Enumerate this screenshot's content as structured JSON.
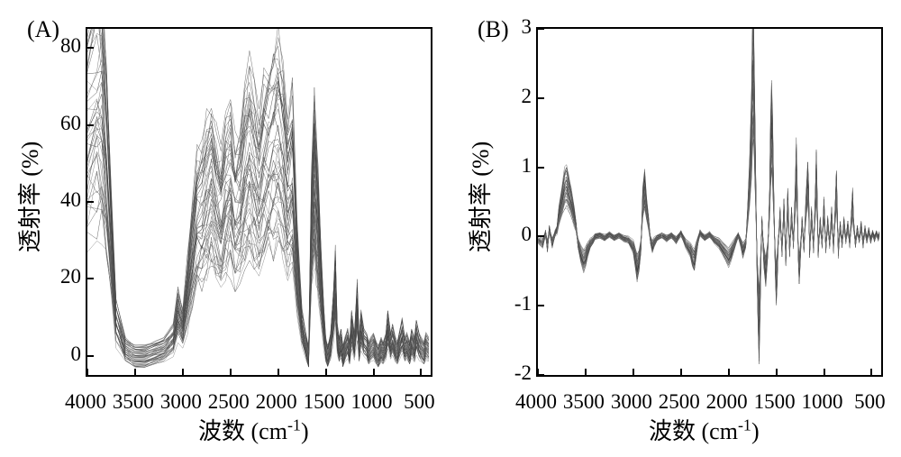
{
  "panel_a": {
    "label": "(A)",
    "type": "line",
    "y_label": "透射率 (%)",
    "x_label_prefix": "波数 (cm",
    "x_label_sup": "-1",
    "x_label_suffix": ")",
    "xlim": [
      4000,
      400
    ],
    "ylim": [
      -5,
      85
    ],
    "x_ticks": [
      4000,
      3500,
      3000,
      2500,
      2000,
      1500,
      1000,
      500
    ],
    "y_ticks": [
      0,
      20,
      40,
      60,
      80
    ],
    "background_color": "#ffffff",
    "axis_color": "#000000",
    "line_colors": [
      "#333333",
      "#444444",
      "#555555",
      "#666666",
      "#777777",
      "#505050"
    ],
    "line_width": 0.5,
    "n_series": 45,
    "title_fontsize": 26,
    "label_fontsize": 26,
    "tick_fontsize": 23,
    "base_curve": [
      [
        4000,
        65
      ],
      [
        3900,
        72
      ],
      [
        3850,
        70
      ],
      [
        3800,
        55
      ],
      [
        3750,
        30
      ],
      [
        3700,
        10
      ],
      [
        3600,
        2
      ],
      [
        3500,
        0
      ],
      [
        3400,
        0
      ],
      [
        3300,
        1
      ],
      [
        3200,
        2
      ],
      [
        3100,
        5
      ],
      [
        3050,
        12
      ],
      [
        3000,
        8
      ],
      [
        2950,
        18
      ],
      [
        2900,
        28
      ],
      [
        2850,
        38
      ],
      [
        2800,
        40
      ],
      [
        2750,
        45
      ],
      [
        2700,
        48
      ],
      [
        2650,
        42
      ],
      [
        2600,
        38
      ],
      [
        2550,
        45
      ],
      [
        2500,
        48
      ],
      [
        2450,
        40
      ],
      [
        2400,
        42
      ],
      [
        2350,
        50
      ],
      [
        2300,
        55
      ],
      [
        2250,
        50
      ],
      [
        2200,
        45
      ],
      [
        2150,
        52
      ],
      [
        2100,
        55
      ],
      [
        2050,
        58
      ],
      [
        2000,
        60
      ],
      [
        1950,
        55
      ],
      [
        1900,
        45
      ],
      [
        1850,
        50
      ],
      [
        1800,
        25
      ],
      [
        1750,
        8
      ],
      [
        1700,
        2
      ],
      [
        1680,
        0
      ],
      [
        1650,
        35
      ],
      [
        1620,
        50
      ],
      [
        1600,
        42
      ],
      [
        1580,
        35
      ],
      [
        1550,
        20
      ],
      [
        1520,
        8
      ],
      [
        1500,
        2
      ],
      [
        1480,
        0
      ],
      [
        1450,
        3
      ],
      [
        1420,
        12
      ],
      [
        1400,
        20
      ],
      [
        1380,
        5
      ],
      [
        1360,
        2
      ],
      [
        1340,
        4
      ],
      [
        1320,
        0
      ],
      [
        1300,
        2
      ],
      [
        1270,
        4
      ],
      [
        1250,
        1
      ],
      [
        1230,
        8
      ],
      [
        1200,
        3
      ],
      [
        1170,
        14
      ],
      [
        1150,
        2
      ],
      [
        1130,
        8
      ],
      [
        1100,
        4
      ],
      [
        1070,
        3
      ],
      [
        1050,
        1
      ],
      [
        1030,
        2
      ],
      [
        1000,
        3
      ],
      [
        970,
        1
      ],
      [
        950,
        0
      ],
      [
        920,
        2
      ],
      [
        900,
        1
      ],
      [
        870,
        3
      ],
      [
        850,
        8
      ],
      [
        820,
        3
      ],
      [
        800,
        5
      ],
      [
        770,
        2
      ],
      [
        750,
        1
      ],
      [
        720,
        4
      ],
      [
        700,
        6
      ],
      [
        670,
        2
      ],
      [
        650,
        3
      ],
      [
        620,
        1
      ],
      [
        600,
        4
      ],
      [
        570,
        2
      ],
      [
        550,
        6
      ],
      [
        520,
        3
      ],
      [
        500,
        2
      ],
      [
        470,
        1
      ],
      [
        450,
        3
      ],
      [
        420,
        2
      ]
    ],
    "variation": 0.35
  },
  "panel_b": {
    "label": "(B)",
    "type": "line",
    "y_label": "透射率 (%)",
    "x_label_prefix": "波数 (cm",
    "x_label_sup": "-1",
    "x_label_suffix": ")",
    "xlim": [
      4000,
      400
    ],
    "ylim": [
      -2,
      3
    ],
    "x_ticks": [
      4000,
      3500,
      3000,
      2500,
      2000,
      1500,
      1000,
      500
    ],
    "y_ticks": [
      -2,
      -1,
      0,
      1,
      2,
      3
    ],
    "background_color": "#ffffff",
    "axis_color": "#000000",
    "line_colors": [
      "#333333",
      "#444444",
      "#555555",
      "#666666",
      "#777777",
      "#505050"
    ],
    "line_width": 0.5,
    "n_series": 35,
    "title_fontsize": 26,
    "label_fontsize": 26,
    "tick_fontsize": 23,
    "base_curve": [
      [
        4000,
        -0.05
      ],
      [
        3950,
        -0.1
      ],
      [
        3920,
        0.05
      ],
      [
        3900,
        -0.15
      ],
      [
        3880,
        0.1
      ],
      [
        3850,
        -0.1
      ],
      [
        3820,
        0.05
      ],
      [
        3800,
        0.1
      ],
      [
        3780,
        0.3
      ],
      [
        3750,
        0.5
      ],
      [
        3720,
        0.7
      ],
      [
        3700,
        0.75
      ],
      [
        3680,
        0.65
      ],
      [
        3650,
        0.5
      ],
      [
        3620,
        0.3
      ],
      [
        3600,
        0.15
      ],
      [
        3580,
        -0.1
      ],
      [
        3550,
        -0.25
      ],
      [
        3520,
        -0.35
      ],
      [
        3500,
        -0.3
      ],
      [
        3480,
        -0.2
      ],
      [
        3450,
        -0.1
      ],
      [
        3420,
        -0.05
      ],
      [
        3400,
        0
      ],
      [
        3350,
        0.02
      ],
      [
        3300,
        -0.02
      ],
      [
        3250,
        0.03
      ],
      [
        3200,
        -0.02
      ],
      [
        3150,
        0.02
      ],
      [
        3100,
        -0.03
      ],
      [
        3050,
        -0.05
      ],
      [
        3000,
        -0.15
      ],
      [
        2980,
        -0.3
      ],
      [
        2960,
        -0.45
      ],
      [
        2940,
        -0.35
      ],
      [
        2920,
        -0.15
      ],
      [
        2900,
        0.5
      ],
      [
        2880,
        0.7
      ],
      [
        2860,
        0.4
      ],
      [
        2840,
        0.2
      ],
      [
        2820,
        -0.05
      ],
      [
        2800,
        -0.15
      ],
      [
        2780,
        -0.08
      ],
      [
        2750,
        -0.02
      ],
      [
        2700,
        0.02
      ],
      [
        2650,
        -0.03
      ],
      [
        2600,
        0.02
      ],
      [
        2550,
        -0.05
      ],
      [
        2500,
        0.05
      ],
      [
        2450,
        -0.1
      ],
      [
        2400,
        -0.2
      ],
      [
        2380,
        -0.3
      ],
      [
        2360,
        -0.35
      ],
      [
        2340,
        -0.2
      ],
      [
        2320,
        -0.05
      ],
      [
        2300,
        0.05
      ],
      [
        2280,
        0.02
      ],
      [
        2250,
        -0.02
      ],
      [
        2200,
        0.03
      ],
      [
        2150,
        -0.05
      ],
      [
        2100,
        -0.1
      ],
      [
        2050,
        -0.2
      ],
      [
        2000,
        -0.3
      ],
      [
        1980,
        -0.25
      ],
      [
        1950,
        -0.15
      ],
      [
        1920,
        -0.05
      ],
      [
        1900,
        0.02
      ],
      [
        1870,
        -0.1
      ],
      [
        1850,
        -0.2
      ],
      [
        1820,
        -0.1
      ],
      [
        1800,
        0.3
      ],
      [
        1780,
        0.8
      ],
      [
        1760,
        1.5
      ],
      [
        1750,
        2.2
      ],
      [
        1740,
        2.4
      ],
      [
        1730,
        1.8
      ],
      [
        1720,
        1.0
      ],
      [
        1710,
        0.2
      ],
      [
        1700,
        -0.5
      ],
      [
        1690,
        -1.0
      ],
      [
        1680,
        -1.3
      ],
      [
        1670,
        -0.8
      ],
      [
        1660,
        -0.2
      ],
      [
        1650,
        0.2
      ],
      [
        1630,
        -0.3
      ],
      [
        1610,
        -0.5
      ],
      [
        1590,
        -0.2
      ],
      [
        1570,
        0.5
      ],
      [
        1560,
        1.2
      ],
      [
        1550,
        1.6
      ],
      [
        1540,
        1.3
      ],
      [
        1530,
        0.7
      ],
      [
        1520,
        0.1
      ],
      [
        1510,
        -0.4
      ],
      [
        1500,
        -0.7
      ],
      [
        1490,
        -0.5
      ],
      [
        1480,
        -0.1
      ],
      [
        1460,
        0.3
      ],
      [
        1440,
        -0.2
      ],
      [
        1420,
        0.4
      ],
      [
        1400,
        -0.3
      ],
      [
        1380,
        0.5
      ],
      [
        1360,
        -0.2
      ],
      [
        1340,
        0.3
      ],
      [
        1320,
        -0.1
      ],
      [
        1300,
        0.6
      ],
      [
        1290,
        1.0
      ],
      [
        1280,
        0.5
      ],
      [
        1270,
        -0.2
      ],
      [
        1260,
        -0.5
      ],
      [
        1250,
        -0.3
      ],
      [
        1230,
        0.2
      ],
      [
        1210,
        -0.15
      ],
      [
        1190,
        0.4
      ],
      [
        1170,
        0.8
      ],
      [
        1160,
        0.5
      ],
      [
        1150,
        -0.2
      ],
      [
        1130,
        0.3
      ],
      [
        1110,
        -0.15
      ],
      [
        1090,
        0.5
      ],
      [
        1080,
        0.9
      ],
      [
        1070,
        0.4
      ],
      [
        1060,
        -0.2
      ],
      [
        1040,
        0.2
      ],
      [
        1020,
        -0.1
      ],
      [
        1000,
        0.4
      ],
      [
        980,
        -0.15
      ],
      [
        960,
        0.2
      ],
      [
        940,
        -0.1
      ],
      [
        920,
        0.3
      ],
      [
        900,
        -0.15
      ],
      [
        880,
        0.4
      ],
      [
        870,
        0.7
      ],
      [
        860,
        0.3
      ],
      [
        850,
        -0.2
      ],
      [
        830,
        0.15
      ],
      [
        810,
        -0.1
      ],
      [
        790,
        0.2
      ],
      [
        770,
        -0.05
      ],
      [
        750,
        0.15
      ],
      [
        730,
        -0.1
      ],
      [
        710,
        0.3
      ],
      [
        700,
        0.5
      ],
      [
        690,
        0.2
      ],
      [
        670,
        -0.1
      ],
      [
        650,
        0.1
      ],
      [
        630,
        -0.05
      ],
      [
        610,
        0.15
      ],
      [
        590,
        -0.1
      ],
      [
        570,
        0.1
      ],
      [
        550,
        -0.05
      ],
      [
        530,
        0.08
      ],
      [
        510,
        -0.05
      ],
      [
        490,
        0.05
      ],
      [
        470,
        -0.03
      ],
      [
        450,
        0.05
      ],
      [
        430,
        -0.02
      ],
      [
        420,
        0.03
      ]
    ],
    "variation": 0.25
  }
}
